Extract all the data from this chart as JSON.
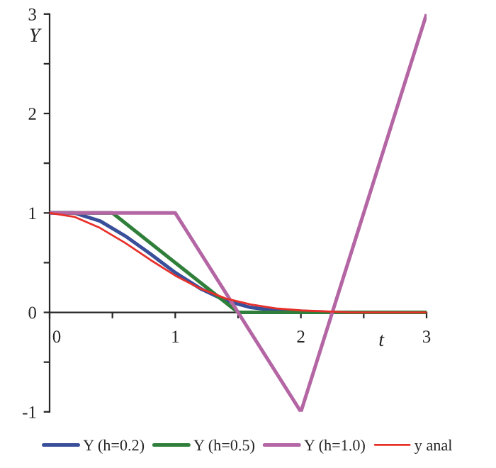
{
  "chart_data": {
    "type": "line",
    "xlabel": "t",
    "ylabel": "Y",
    "xlim": [
      0,
      3
    ],
    "ylim": [
      -1,
      3
    ],
    "xticks": [
      0,
      {
        "value": 0.5,
        "label": null
      },
      1,
      {
        "value": 1.5,
        "label": null
      },
      2,
      {
        "value": 2.5,
        "label": null
      },
      3
    ],
    "yticks": [
      {
        "value": -1,
        "label": "-1"
      },
      {
        "value": -0.5,
        "label": null
      },
      0,
      {
        "value": 0.5,
        "label": null
      },
      1,
      {
        "value": 1.5,
        "label": null
      },
      2,
      {
        "value": 2.5,
        "label": null
      },
      3
    ],
    "grid": false,
    "legend": "bottom",
    "marker": "none",
    "line_style": "solid",
    "series": [
      {
        "name": "Y (h=0.2)",
        "color": "#3a4f9a",
        "x": [
          0,
          0.2,
          0.4,
          0.6,
          0.8,
          1.0,
          1.2,
          1.4,
          1.6,
          1.8,
          2.0,
          2.2,
          2.4
        ],
        "values": [
          1,
          1,
          0.92,
          0.77,
          0.59,
          0.4,
          0.24,
          0.12,
          0.05,
          0.02,
          0.01,
          0,
          0
        ]
      },
      {
        "name": "Y (h=0.5)",
        "color": "#2f7f3a",
        "x": [
          0,
          0.5,
          1.0,
          1.5,
          2.0,
          2.5,
          3.0
        ],
        "values": [
          1,
          1,
          0.5,
          0,
          0,
          0,
          0
        ]
      },
      {
        "name": "Y (h=1.0)",
        "color": "#b466a4",
        "x": [
          0,
          1,
          2,
          3
        ],
        "values": [
          1,
          1,
          -1,
          3
        ]
      },
      {
        "name": "y anal",
        "color": "#e8302a",
        "x": [
          0,
          0.2,
          0.4,
          0.6,
          0.8,
          1.0,
          1.2,
          1.4,
          1.6,
          1.8,
          2.0,
          2.2,
          2.4,
          2.6,
          2.8,
          3.0
        ],
        "values": [
          1,
          0.96,
          0.85,
          0.7,
          0.53,
          0.37,
          0.24,
          0.14,
          0.08,
          0.04,
          0.02,
          0.01,
          0,
          0,
          0,
          0
        ]
      }
    ]
  }
}
